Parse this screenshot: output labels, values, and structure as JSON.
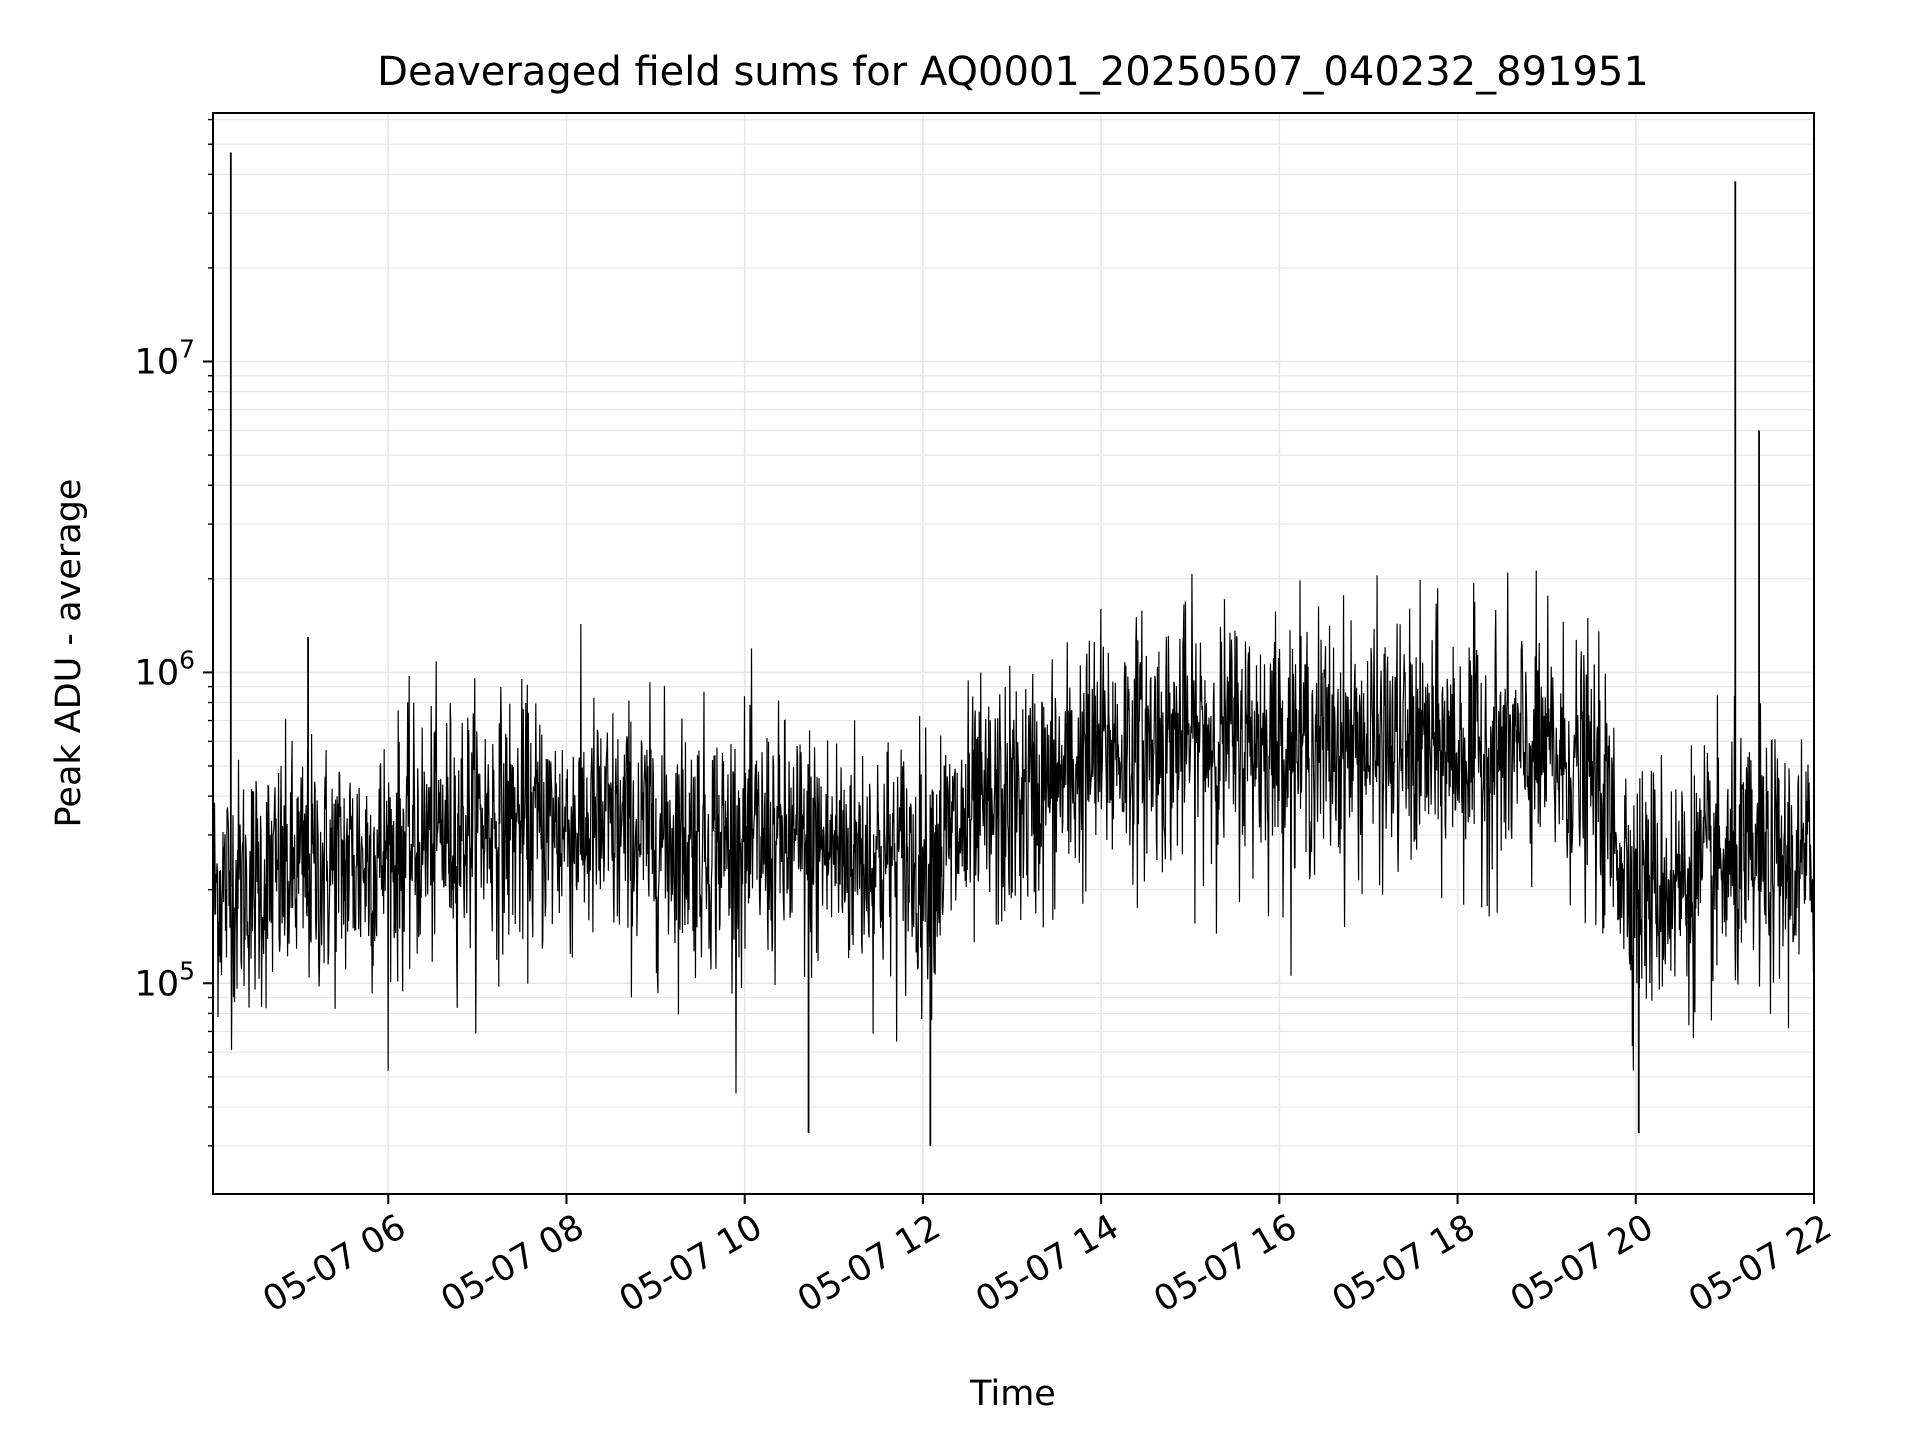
{
  "chart_data": {
    "type": "line",
    "title": "Deaveraged field sums for AQ0001_20250507_040232_891951",
    "xlabel": "Time",
    "ylabel": "Peak ADU - average",
    "x_ticks": [
      "05-07 06",
      "05-07 08",
      "05-07 10",
      "05-07 12",
      "05-07 14",
      "05-07 16",
      "05-07 18",
      "05-07 20",
      "05-07 22"
    ],
    "y_ticks": [
      {
        "base": "10",
        "exp": "5",
        "value": 100000
      },
      {
        "base": "10",
        "exp": "6",
        "value": 1000000
      },
      {
        "base": "10",
        "exp": "7",
        "value": 10000000
      }
    ],
    "x_range": [
      "2025-05-07 04:02",
      "2025-05-07 22:00"
    ],
    "ylim": [
      21000,
      63000000
    ],
    "yscale": "log",
    "grid": "major and minor",
    "line_color": "#000000",
    "grid_color": "#e6e6e6",
    "series": [
      {
        "x": [
          "2025-05-07 04:02",
          "2025-05-07 04:30",
          "2025-05-07 05:00",
          "2025-05-07 05:30",
          "2025-05-07 06:00",
          "2025-05-07 06:30",
          "2025-05-07 07:00",
          "2025-05-07 08:00",
          "2025-05-07 09:00",
          "2025-05-07 10:00",
          "2025-05-07 11:00",
          "2025-05-07 12:00",
          "2025-05-07 12:30",
          "2025-05-07 13:00",
          "2025-05-07 13:30",
          "2025-05-07 14:00",
          "2025-05-07 15:00",
          "2025-05-07 16:00",
          "2025-05-07 17:00",
          "2025-05-07 18:00",
          "2025-05-07 19:00",
          "2025-05-07 19:30",
          "2025-05-07 20:00",
          "2025-05-07 20:30",
          "2025-05-07 21:00",
          "2025-05-07 21:30",
          "2025-05-07 22:00"
        ],
        "values": [
          200000,
          210000,
          230000,
          240000,
          260000,
          300000,
          330000,
          320000,
          300000,
          280000,
          270000,
          240000,
          320000,
          380000,
          440000,
          560000,
          620000,
          600000,
          580000,
          560000,
          540000,
          470000,
          200000,
          210000,
          230000,
          240000,
          230000
        ],
        "spikes": [
          {
            "x": "2025-05-07 04:14",
            "y": 47000000
          },
          {
            "x": "2025-05-07 05:06",
            "y": 1300000
          },
          {
            "x": "2025-05-07 21:07",
            "y": 38000000
          },
          {
            "x": "2025-05-07 21:23",
            "y": 6000000
          },
          {
            "x": "2025-05-07 12:05",
            "y": 30000
          },
          {
            "x": "2025-05-07 10:43",
            "y": 33000
          },
          {
            "x": "2025-05-07 20:02",
            "y": 33000
          }
        ]
      }
    ]
  }
}
